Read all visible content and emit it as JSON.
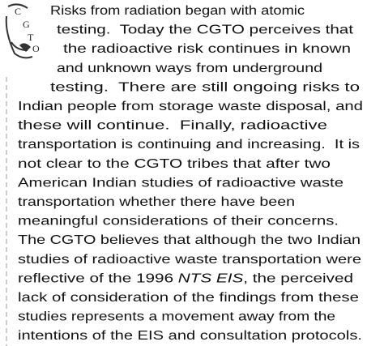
{
  "logo": {
    "letters": [
      "C",
      "G",
      "T",
      "O"
    ]
  },
  "paragraph": {
    "lines": [
      "Risks from radiation began with atomic",
      "testing.  Today the CGTO perceives that",
      "the radioactive risk continues in known",
      "and unknown ways from underground",
      "testing.  There are still ongoing risks to",
      "Indian people from storage waste disposal, and",
      "these will continue.  Finally, radioactive",
      "transportation is continuing and increasing.  It is",
      "not clear to the CGTO tribes that after two",
      "American Indian studies of radioactive waste",
      "transportation whether there have been",
      "meaningful considerations of their concerns.",
      "The CGTO believes that although the two Indian",
      "studies of radioactive waste transportation were",
      [
        "reflective of the 1996 ",
        "NTS EIS",
        ", the perceived"
      ],
      "lack of consideration of the findings from these",
      "studies represents a movement away from the",
      "intentions of the EIS and consultation protocols."
    ]
  }
}
